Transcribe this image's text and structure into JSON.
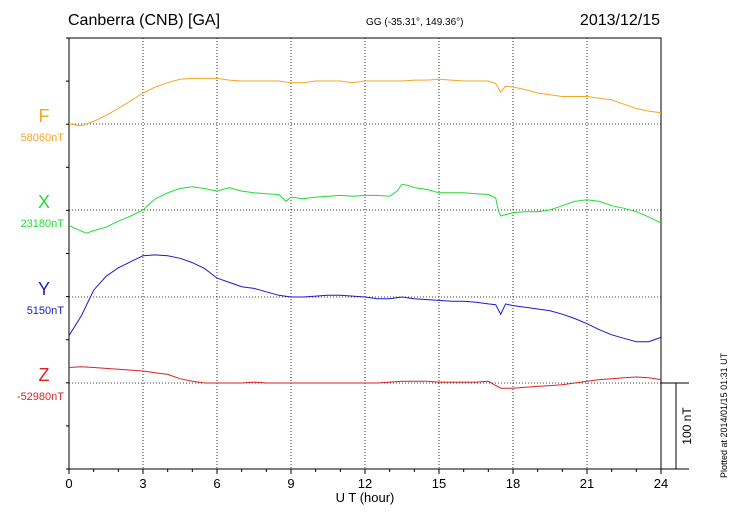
{
  "header": {
    "station": "Canberra (CNB)  [GA]",
    "coords": "GG (-35.31°, 149.36°)",
    "date": "2013/12/15"
  },
  "footer": {
    "plotted": "Plotted at 2014/01/15 01:31 UT"
  },
  "colors": {
    "F": "#f5a623",
    "X": "#22dd33",
    "Y": "#1a1acc",
    "Z": "#dd2222"
  },
  "chart_data": {
    "type": "line",
    "title": "",
    "xlabel": "U T (hour)",
    "ylabel": "",
    "xlim": [
      0,
      24
    ],
    "xticks": [
      0,
      3,
      6,
      9,
      12,
      15,
      18,
      21,
      24
    ],
    "grid": true,
    "scale_bar": {
      "label": "100 nT",
      "value_nT": 100
    },
    "series": [
      {
        "name": "F",
        "baseline_label": "58060nT",
        "baseline_nT": 58060,
        "x": [
          0,
          0.5,
          1,
          1.5,
          2,
          2.5,
          3,
          3.5,
          4,
          4.5,
          5,
          5.5,
          6,
          6.5,
          7,
          7.5,
          8,
          8.5,
          9,
          9.5,
          10,
          10.5,
          11,
          11.5,
          12,
          12.5,
          13,
          13.5,
          14,
          14.5,
          15,
          15.5,
          16,
          16.5,
          17,
          17.3,
          17.5,
          17.7,
          18,
          18.5,
          19,
          19.5,
          20,
          20.5,
          21,
          21.5,
          22,
          22.5,
          23,
          23.5,
          24
        ],
        "y": [
          58060,
          58058,
          58063,
          58070,
          58078,
          58087,
          58096,
          58103,
          58108,
          58112,
          58113,
          58113,
          58113,
          58111,
          58110,
          58110,
          58110,
          58110,
          58108,
          58108,
          58110,
          58110,
          58110,
          58108,
          58110,
          58110,
          58110,
          58110,
          58111,
          58111,
          58112,
          58111,
          58110,
          58110,
          58110,
          58107,
          58097,
          58104,
          58103,
          58100,
          58096,
          58094,
          58092,
          58092,
          58092,
          58090,
          58088,
          58083,
          58078,
          58075,
          58073
        ]
      },
      {
        "name": "X",
        "baseline_label": "23180nT",
        "baseline_nT": 23180,
        "x": [
          0,
          0.3,
          0.7,
          1,
          1.5,
          2,
          2.5,
          3,
          3.5,
          4,
          4.5,
          5,
          5.5,
          6,
          6.5,
          7,
          7.5,
          8,
          8.5,
          8.8,
          9,
          9.5,
          10,
          10.5,
          11,
          11.5,
          12,
          12.5,
          13,
          13.3,
          13.5,
          13.8,
          14,
          14.5,
          15,
          15.5,
          16,
          16.5,
          17,
          17.3,
          17.4,
          17.5,
          18,
          18.5,
          19,
          19.5,
          20,
          20.5,
          21,
          21.5,
          22,
          22.5,
          23,
          23.5,
          24
        ],
        "y": [
          23162,
          23158,
          23153,
          23156,
          23160,
          23167,
          23173,
          23180,
          23193,
          23200,
          23205,
          23207,
          23205,
          23202,
          23206,
          23202,
          23200,
          23199,
          23198,
          23190,
          23195,
          23193,
          23195,
          23196,
          23197,
          23196,
          23197,
          23197,
          23196,
          23202,
          23210,
          23208,
          23206,
          23204,
          23200,
          23200,
          23200,
          23199,
          23198,
          23194,
          23180,
          23173,
          23177,
          23178,
          23178,
          23180,
          23185,
          23190,
          23192,
          23190,
          23185,
          23182,
          23178,
          23172,
          23165
        ]
      },
      {
        "name": "Y",
        "baseline_label": "5150nT",
        "baseline_nT": 5150,
        "x": [
          0,
          0.5,
          1,
          1.5,
          2,
          2.5,
          3,
          3.5,
          4,
          4.5,
          5,
          5.5,
          6,
          6.5,
          7,
          7.5,
          8,
          8.5,
          9,
          9.5,
          10,
          10.5,
          11,
          11.5,
          12,
          12.5,
          13,
          13.5,
          14,
          14.5,
          15,
          15.5,
          16,
          16.5,
          17,
          17.3,
          17.5,
          17.7,
          18,
          18.5,
          19,
          19.5,
          20,
          20.5,
          21,
          21.5,
          22,
          22.5,
          23,
          23.5,
          24
        ],
        "y": [
          5105,
          5128,
          5158,
          5174,
          5184,
          5191,
          5198,
          5199,
          5198,
          5195,
          5190,
          5183,
          5172,
          5167,
          5162,
          5160,
          5156,
          5152,
          5150,
          5150,
          5151,
          5152,
          5152,
          5151,
          5150,
          5148,
          5148,
          5150,
          5148,
          5147,
          5146,
          5145,
          5145,
          5144,
          5142,
          5141,
          5130,
          5142,
          5140,
          5138,
          5136,
          5134,
          5130,
          5125,
          5119,
          5112,
          5106,
          5102,
          5098,
          5098,
          5103
        ]
      },
      {
        "name": "Z",
        "baseline_label": "-52980nT",
        "baseline_nT": -52980,
        "x": [
          0,
          0.5,
          1,
          1.5,
          2,
          2.5,
          3,
          3.5,
          4,
          4.5,
          5,
          5.5,
          6,
          6.5,
          7,
          7.5,
          8,
          8.5,
          9,
          9.5,
          10,
          10.5,
          11,
          11.5,
          12,
          12.5,
          13,
          13.5,
          14,
          14.5,
          15,
          15.5,
          16,
          16.5,
          17,
          17.5,
          18,
          18.5,
          19,
          19.5,
          20,
          20.5,
          21,
          21.5,
          22,
          22.5,
          23,
          23.5,
          24
        ],
        "y": [
          -52962,
          -52961,
          -52962,
          -52963,
          -52964,
          -52965,
          -52966,
          -52968,
          -52970,
          -52975,
          -52978,
          -52980,
          -52980,
          -52980,
          -52980,
          -52979,
          -52980,
          -52980,
          -52980,
          -52980,
          -52980,
          -52980,
          -52980,
          -52980,
          -52980,
          -52980,
          -52979,
          -52978,
          -52978,
          -52978,
          -52979,
          -52979,
          -52979,
          -52979,
          -52978,
          -52986,
          -52986,
          -52985,
          -52984,
          -52983,
          -52982,
          -52980,
          -52978,
          -52976,
          -52975,
          -52974,
          -52973,
          -52974,
          -52976
        ]
      }
    ]
  }
}
